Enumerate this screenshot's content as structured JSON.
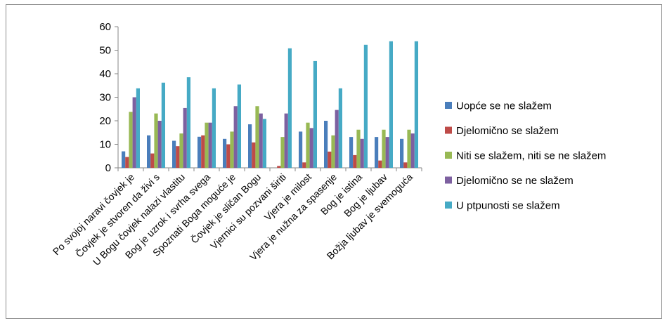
{
  "chart_data": {
    "type": "bar",
    "title": "",
    "xlabel": "",
    "ylabel": "",
    "ylim": [
      0,
      60
    ],
    "yticks": [
      0,
      10,
      20,
      30,
      40,
      50,
      60
    ],
    "grid": false,
    "legend_position": "right",
    "categories": [
      "Po svojoj naravi čovjek je",
      "Čovjek je stvoren da živi s",
      "U Bogu čovjek nalazi vlastitu",
      "Bog je uzrok i svrha svega",
      "Spoznati Boga moguće je",
      "Čovjek je sličan Bogu",
      "Vjernici su pozvani širiti",
      "Vjera je milost",
      "Vjera je nužna za spasenje",
      "Bog je istina",
      "Bog je ljubav",
      "Božja ljubav je svemoguća"
    ],
    "series": [
      {
        "name": "Uopće se ne slažem",
        "color": "#4a7ebb",
        "values": [
          7,
          13.8,
          11.5,
          13.2,
          12.3,
          18.5,
          0,
          15.4,
          20,
          13.1,
          13.1,
          12.3
        ]
      },
      {
        "name": "Djelomično se slažem",
        "color": "#be4b48",
        "values": [
          4.6,
          6.1,
          9.2,
          13.8,
          10,
          10.8,
          0.8,
          2.3,
          6.9,
          5.4,
          3.1,
          2.3
        ]
      },
      {
        "name": "Niti se slažem, niti se ne slažem",
        "color": "#98b954",
        "values": [
          23.8,
          23.1,
          14.6,
          19.2,
          15.4,
          26.2,
          13.1,
          19.2,
          13.8,
          16.2,
          16.2,
          16.2
        ]
      },
      {
        "name": "Djelomično se ne slažem",
        "color": "#7d60a0",
        "values": [
          30,
          20,
          25.4,
          19.2,
          26.2,
          23.1,
          23.1,
          16.9,
          24.6,
          12.3,
          13.1,
          14.6
        ]
      },
      {
        "name": "U ptpunosti se slažem",
        "color": "#46aac5",
        "values": [
          33.8,
          36.2,
          38.5,
          33.8,
          35.4,
          20.8,
          50.8,
          45.4,
          33.8,
          52.3,
          53.8,
          53.8
        ]
      }
    ]
  }
}
